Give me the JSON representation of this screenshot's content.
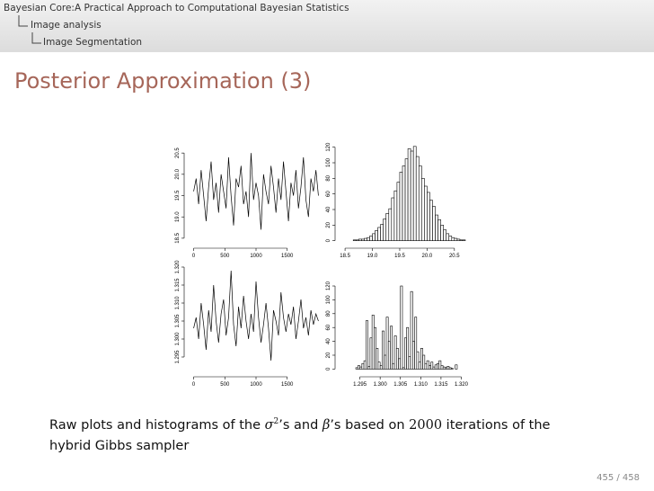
{
  "header": {
    "crumbs": [
      "Bayesian Core:A Practical Approach to Computational Bayesian Statistics",
      "Image analysis",
      "Image Segmentation"
    ]
  },
  "title": "Posterior Approximation (3)",
  "chart_data": [
    {
      "type": "line",
      "color": "#000000",
      "x": [
        0,
        40,
        80,
        120,
        160,
        200,
        240,
        280,
        320,
        360,
        400,
        440,
        480,
        520,
        560,
        600,
        640,
        680,
        720,
        760,
        800,
        840,
        880,
        920,
        960,
        1000,
        1040,
        1080,
        1120,
        1160,
        1200,
        1240,
        1280,
        1320,
        1360,
        1400,
        1440,
        1480,
        1520,
        1560,
        1600,
        1640,
        1680,
        1720,
        1760,
        1800,
        1840,
        1880,
        1920,
        1960,
        2000
      ],
      "values": [
        19.6,
        19.9,
        19.3,
        20.1,
        19.5,
        18.9,
        19.7,
        20.3,
        19.4,
        19.8,
        19.1,
        20.0,
        19.6,
        19.2,
        20.4,
        19.5,
        18.8,
        19.9,
        19.7,
        20.2,
        19.3,
        19.6,
        19.0,
        20.5,
        19.4,
        19.8,
        19.5,
        18.7,
        20.0,
        19.6,
        19.3,
        20.2,
        19.7,
        19.1,
        19.9,
        19.4,
        20.3,
        19.6,
        18.9,
        19.8,
        19.5,
        20.1,
        19.2,
        19.7,
        20.4,
        19.4,
        19.0,
        19.9,
        19.6,
        20.1,
        19.5
      ],
      "xlim": [
        -80,
        2080
      ],
      "xticks": [
        0,
        500,
        1000,
        1500
      ],
      "ylim": [
        18.35,
        20.82
      ],
      "yticks": [
        18.5,
        {
          "value": 19,
          "label": "19.0"
        },
        19.5,
        {
          "value": 20,
          "label": "20.0"
        },
        20.5
      ]
    },
    {
      "type": "histogram",
      "color": "#ffffff",
      "bins": [
        18.65,
        18.7,
        18.75,
        18.8,
        18.85,
        18.9,
        18.95,
        19.0,
        19.05,
        19.1,
        19.15,
        19.2,
        19.25,
        19.3,
        19.35,
        19.4,
        19.45,
        19.5,
        19.55,
        19.6,
        19.65,
        19.7,
        19.75,
        19.8,
        19.85,
        19.9,
        19.95,
        20.0,
        20.05,
        20.1,
        20.15,
        20.2,
        20.25,
        20.3,
        20.35,
        20.4,
        20.45,
        20.5,
        20.55,
        20.6,
        20.65,
        20.7
      ],
      "values": [
        1,
        1,
        2,
        2,
        3,
        4,
        6,
        9,
        13,
        17,
        21,
        28,
        35,
        41,
        55,
        64,
        75,
        88,
        96,
        105,
        118,
        115,
        121,
        108,
        96,
        80,
        70,
        62,
        52,
        44,
        33,
        27,
        20,
        14,
        9,
        6,
        4,
        3,
        2,
        1,
        1
      ],
      "xlim": [
        18.4,
        20.7
      ],
      "xticks": [
        18.5,
        {
          "value": 19,
          "label": "19.0"
        },
        19.5,
        {
          "value": 20,
          "label": "20.0"
        },
        20.5
      ],
      "ylim": [
        -5,
        130
      ],
      "yticks": [
        0,
        20,
        40,
        60,
        80,
        100,
        120
      ]
    },
    {
      "type": "line",
      "color": "#000000",
      "x": [
        0,
        40,
        80,
        120,
        160,
        200,
        240,
        280,
        320,
        360,
        400,
        440,
        480,
        520,
        560,
        600,
        640,
        680,
        720,
        760,
        800,
        840,
        880,
        920,
        960,
        1000,
        1040,
        1080,
        1120,
        1160,
        1200,
        1240,
        1280,
        1320,
        1360,
        1400,
        1440,
        1480,
        1520,
        1560,
        1600,
        1640,
        1680,
        1720,
        1760,
        1800,
        1840,
        1880,
        1920,
        1960,
        2000
      ],
      "values": [
        1.303,
        1.306,
        1.3,
        1.31,
        1.304,
        1.297,
        1.308,
        1.302,
        1.315,
        1.305,
        1.299,
        1.307,
        1.311,
        1.301,
        1.306,
        1.319,
        1.304,
        1.298,
        1.309,
        1.303,
        1.312,
        1.305,
        1.3,
        1.307,
        1.302,
        1.316,
        1.306,
        1.299,
        1.304,
        1.31,
        1.303,
        1.294,
        1.308,
        1.305,
        1.301,
        1.313,
        1.306,
        1.302,
        1.307,
        1.304,
        1.309,
        1.3,
        1.305,
        1.311,
        1.303,
        1.306,
        1.301,
        1.308,
        1.304,
        1.307,
        1.305
      ],
      "xlim": [
        -80,
        2080
      ],
      "xticks": [
        0,
        500,
        1000,
        1500
      ],
      "ylim": [
        1.2905,
        1.321
      ],
      "yticks": [
        1.295,
        {
          "value": 1.3,
          "label": "1.300"
        },
        1.305,
        {
          "value": 1.31,
          "label": "1.310"
        },
        1.315,
        {
          "value": 1.32,
          "label": "1.320"
        }
      ]
    },
    {
      "type": "histogram",
      "color": "#ffffff",
      "bins": [
        1.2935,
        1.294,
        1.2945,
        1.295,
        1.2955,
        1.296,
        1.2965,
        1.297,
        1.2975,
        1.298,
        1.2985,
        1.299,
        1.2995,
        1.3,
        1.3005,
        1.301,
        1.3015,
        1.302,
        1.3025,
        1.303,
        1.3035,
        1.304,
        1.3045,
        1.305,
        1.3055,
        1.306,
        1.3065,
        1.307,
        1.3075,
        1.308,
        1.3085,
        1.309,
        1.3095,
        1.31,
        1.3105,
        1.311,
        1.3115,
        1.312,
        1.3125,
        1.313,
        1.3135,
        1.314,
        1.3145,
        1.315,
        1.3155,
        1.316,
        1.3165,
        1.317,
        1.3175,
        1.318,
        1.3185,
        1.319
      ],
      "values": [
        0,
        2,
        5,
        3,
        8,
        12,
        70,
        4,
        45,
        78,
        60,
        30,
        10,
        5,
        55,
        20,
        75,
        40,
        62,
        8,
        48,
        30,
        15,
        120,
        2,
        45,
        60,
        18,
        112,
        40,
        75,
        25,
        10,
        30,
        20,
        8,
        12,
        5,
        10,
        3,
        6,
        8,
        12,
        5,
        3,
        2,
        4,
        2,
        1,
        0,
        6
      ],
      "xlim": [
        1.29,
        1.321
      ],
      "xticks": [
        1.295,
        {
          "value": 1.3,
          "label": "1.300"
        },
        1.305,
        {
          "value": 1.31,
          "label": "1.310"
        },
        1.315,
        {
          "value": 1.32,
          "label": "1.320"
        }
      ],
      "ylim": [
        -6,
        146
      ],
      "yticks": [
        0,
        20,
        40,
        60,
        80,
        100,
        120
      ]
    }
  ],
  "caption": [
    "Raw plots and histograms of the ",
    "σ",
    "2",
    "’s and ",
    "β",
    "’s based on ",
    "2000",
    " iterations of the",
    "hybrid Gibbs sampler"
  ],
  "footer": "455 / 458"
}
